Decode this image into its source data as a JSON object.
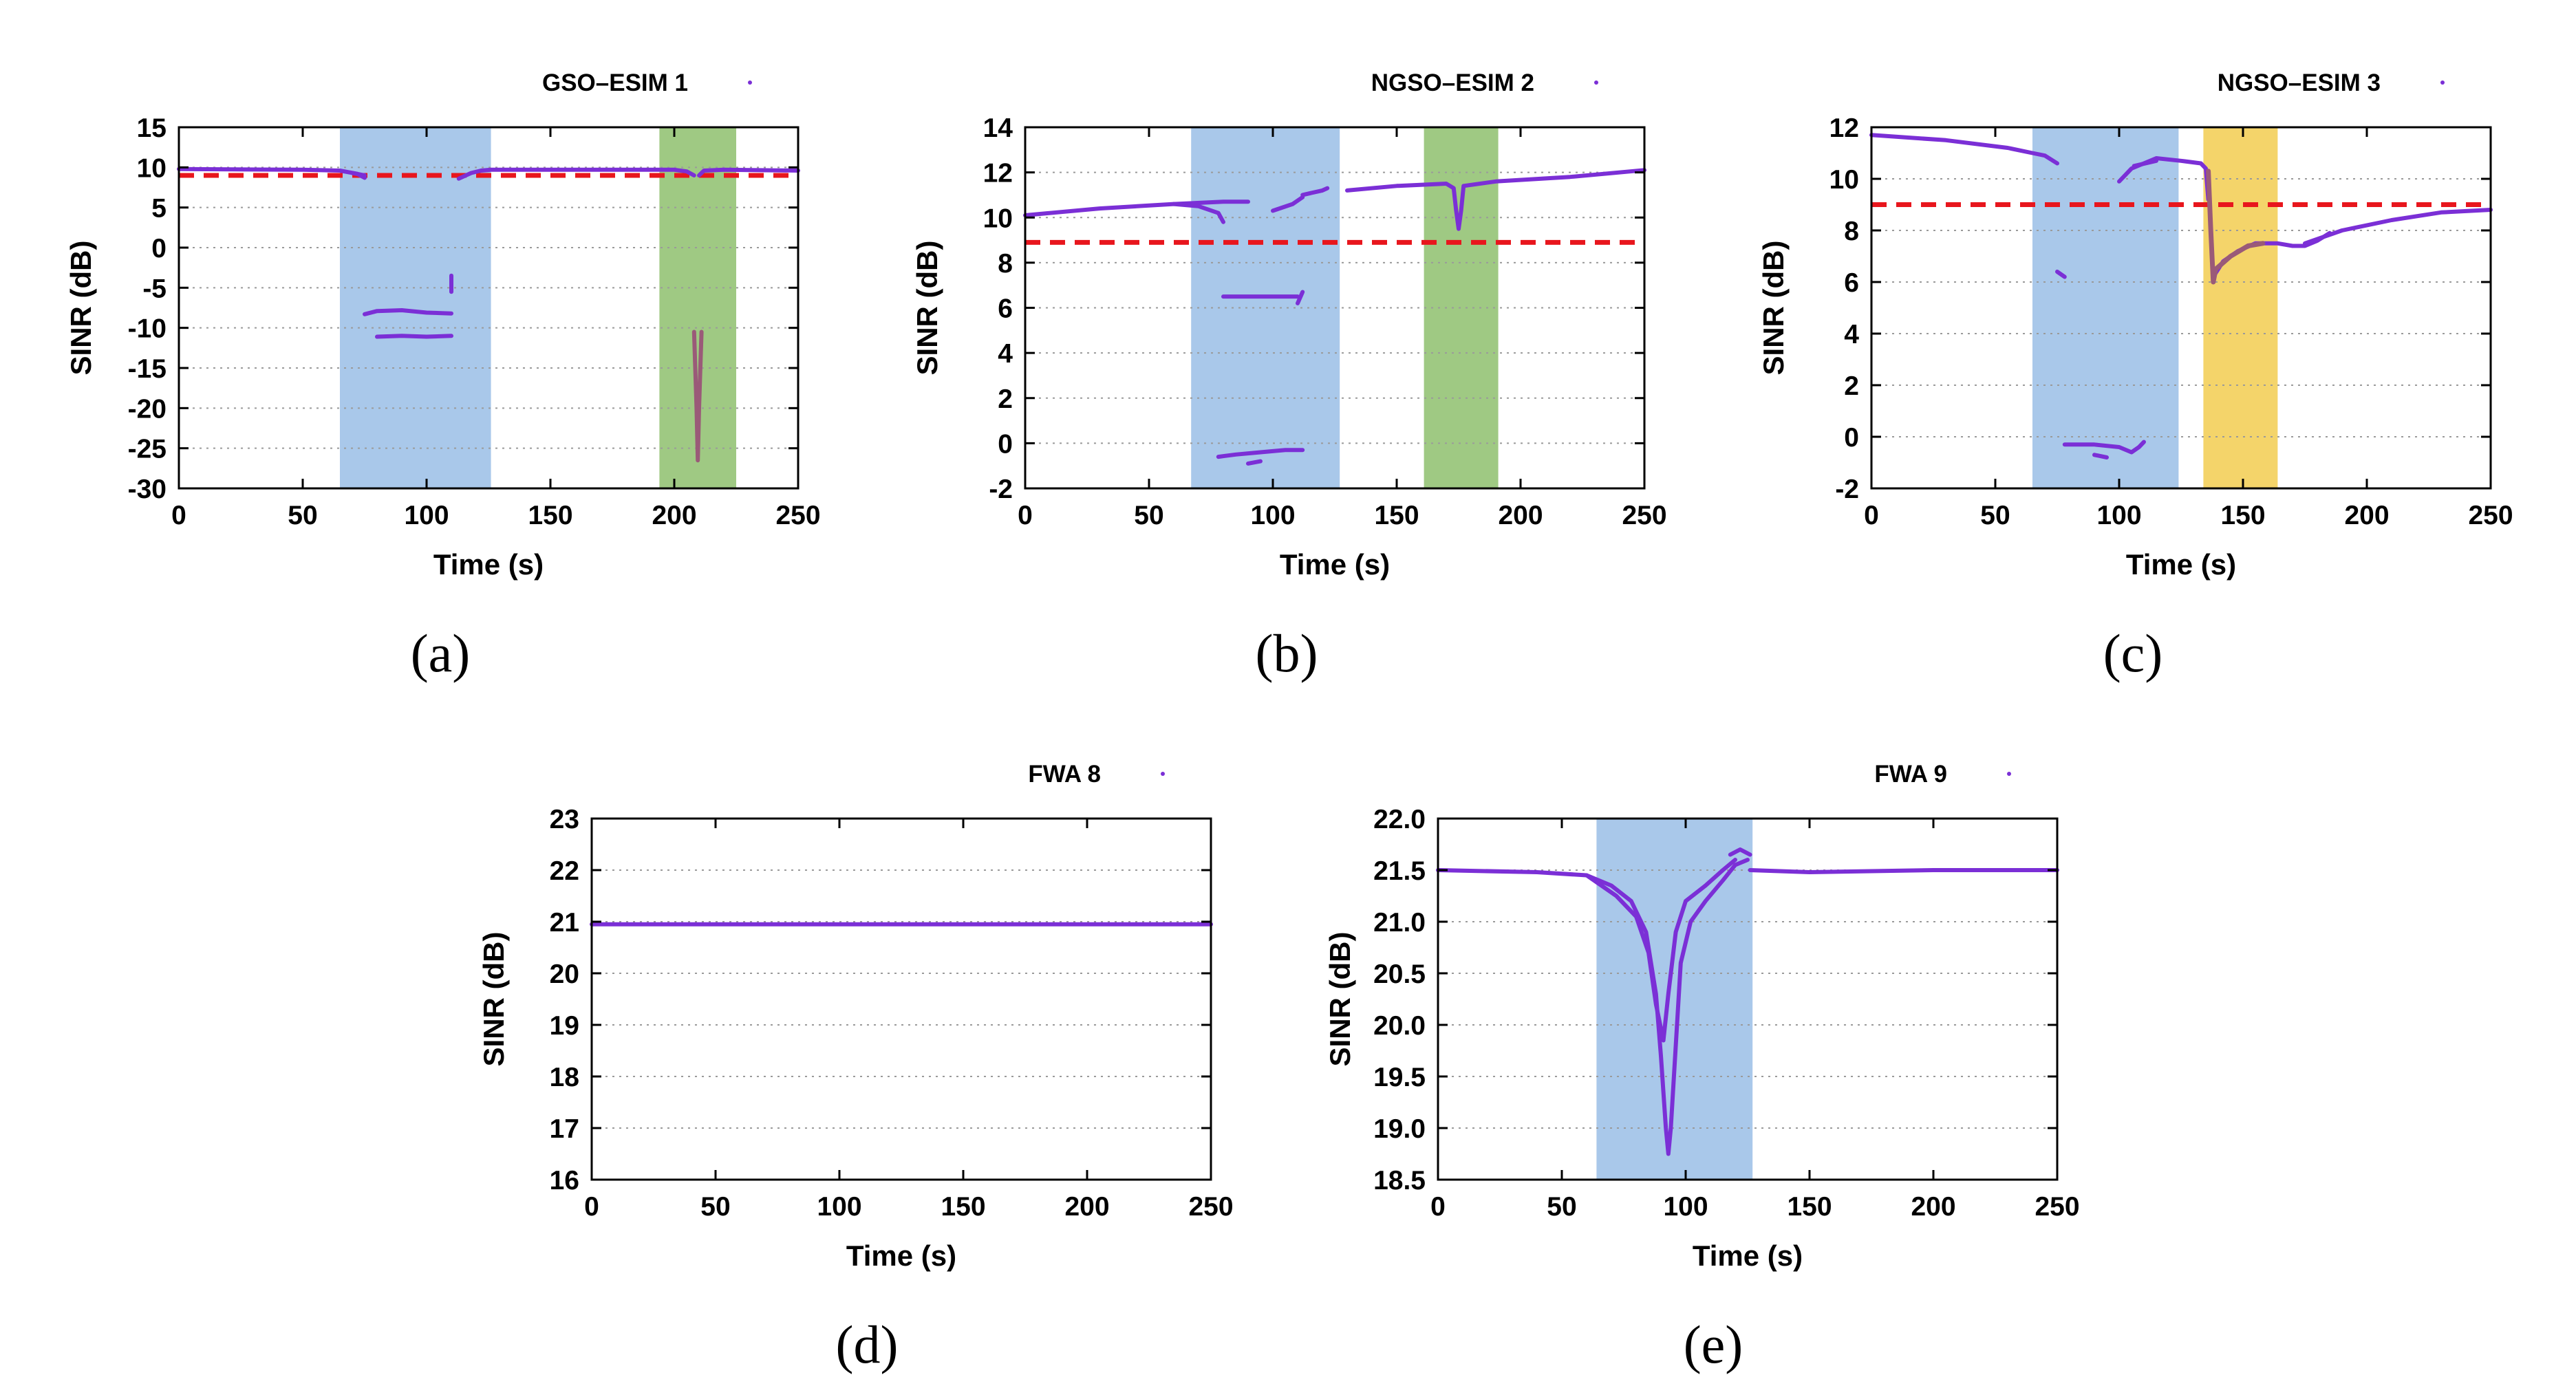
{
  "figure": {
    "captions": [
      "(a)",
      "(b)",
      "(c)",
      "(d)",
      "(e)"
    ]
  },
  "style": {
    "line_color": "#7b2fd6",
    "threshold_color": "#e8161d",
    "blue_region": "#a9c8ea",
    "green_region": "#9fc983",
    "yellow_region": "#f4d46a",
    "outlier_color": "#9a5a78"
  },
  "chart_data": [
    {
      "id": "a",
      "type": "line",
      "legend": "GSO–ESIM 1",
      "xlabel": "Time (s)",
      "ylabel": "SINR (dB)",
      "xlim": [
        0,
        250
      ],
      "ylim": [
        -30,
        15
      ],
      "xticks": [
        0,
        50,
        100,
        150,
        200,
        250
      ],
      "yticks": [
        -30,
        -25,
        -20,
        -15,
        -10,
        -5,
        0,
        5,
        10,
        15
      ],
      "ytick_labels": [
        "-30",
        "-25",
        "-20",
        "-15",
        "-10",
        "-5",
        "0",
        "5",
        "10",
        "15"
      ],
      "grid": true,
      "threshold": 9,
      "regions": [
        {
          "x0": 65,
          "x1": 126,
          "color": "blue"
        },
        {
          "x0": 194,
          "x1": 225,
          "color": "green"
        }
      ],
      "series": [
        {
          "name": "main",
          "points": [
            [
              0,
              9.8
            ],
            [
              50,
              9.7
            ],
            [
              65,
              9.6
            ],
            [
              72,
              9.2
            ],
            [
              75,
              8.7
            ]
          ]
        },
        {
          "name": "main-2",
          "points": [
            [
              113,
              8.6
            ],
            [
              118,
              9.3
            ],
            [
              122,
              9.6
            ],
            [
              126,
              9.7
            ],
            [
              200,
              9.7
            ],
            [
              205,
              9.5
            ],
            [
              208,
              9.0
            ]
          ]
        },
        {
          "name": "main-3",
          "points": [
            [
              210,
              9.0
            ],
            [
              212,
              9.6
            ],
            [
              220,
              9.7
            ],
            [
              250,
              9.6
            ]
          ]
        },
        {
          "name": "drop-1",
          "points": [
            [
              70,
              9.3
            ],
            [
              75,
              9.0
            ]
          ]
        },
        {
          "name": "low-1",
          "points": [
            [
              75,
              -8.3
            ],
            [
              80,
              -7.9
            ],
            [
              90,
              -7.8
            ],
            [
              100,
              -8.1
            ],
            [
              110,
              -8.2
            ]
          ]
        },
        {
          "name": "low-2",
          "points": [
            [
              80,
              -11.1
            ],
            [
              90,
              -11.0
            ],
            [
              100,
              -11.1
            ],
            [
              110,
              -11.0
            ]
          ]
        },
        {
          "name": "spike",
          "points": [
            [
              110,
              -3.5
            ],
            [
              110,
              -5.5
            ]
          ]
        },
        {
          "name": "deep-dip",
          "points": [
            [
              208,
              -10.5
            ],
            [
              209,
              -20
            ],
            [
              209.5,
              -26.5
            ],
            [
              210,
              -20
            ],
            [
              211,
              -10.5
            ]
          ]
        }
      ]
    },
    {
      "id": "b",
      "type": "line",
      "legend": "NGSO–ESIM 2",
      "xlabel": "Time (s)",
      "ylabel": "SINR (dB)",
      "xlim": [
        0,
        250
      ],
      "ylim": [
        -2,
        14
      ],
      "xticks": [
        0,
        50,
        100,
        150,
        200,
        250
      ],
      "yticks": [
        -2,
        0,
        2,
        4,
        6,
        8,
        10,
        12,
        14
      ],
      "ytick_labels": [
        "-2",
        "0",
        "2",
        "4",
        "6",
        "8",
        "10",
        "12",
        "14"
      ],
      "grid": true,
      "threshold": 8.9,
      "regions": [
        {
          "x0": 67,
          "x1": 127,
          "color": "blue"
        },
        {
          "x0": 161,
          "x1": 191,
          "color": "green"
        }
      ],
      "series": [
        {
          "name": "main",
          "points": [
            [
              0,
              10.1
            ],
            [
              30,
              10.4
            ],
            [
              60,
              10.6
            ],
            [
              80,
              10.7
            ],
            [
              90,
              10.7
            ]
          ]
        },
        {
          "name": "main-dip",
          "points": [
            [
              60,
              10.6
            ],
            [
              70,
              10.5
            ],
            [
              78,
              10.2
            ],
            [
              80,
              9.8
            ]
          ]
        },
        {
          "name": "rise-1",
          "points": [
            [
              100,
              10.3
            ],
            [
              108,
              10.6
            ],
            [
              112,
              10.9
            ]
          ]
        },
        {
          "name": "rise-2",
          "points": [
            [
              112,
              11.0
            ],
            [
              120,
              11.2
            ],
            [
              122,
              11.3
            ]
          ]
        },
        {
          "name": "main-2",
          "points": [
            [
              130,
              11.2
            ],
            [
              150,
              11.4
            ],
            [
              170,
              11.5
            ],
            [
              173,
              11.3
            ],
            [
              174,
              10.3
            ],
            [
              175,
              9.5
            ],
            [
              176,
              10.3
            ],
            [
              177,
              11.4
            ],
            [
              190,
              11.6
            ],
            [
              220,
              11.8
            ],
            [
              250,
              12.1
            ]
          ]
        },
        {
          "name": "mid",
          "points": [
            [
              80,
              6.5
            ],
            [
              90,
              6.5
            ],
            [
              100,
              6.5
            ],
            [
              110,
              6.5
            ]
          ]
        },
        {
          "name": "mid-2",
          "points": [
            [
              110,
              6.2
            ],
            [
              112,
              6.7
            ]
          ]
        },
        {
          "name": "low",
          "points": [
            [
              78,
              -0.6
            ],
            [
              85,
              -0.5
            ],
            [
              95,
              -0.4
            ],
            [
              105,
              -0.3
            ],
            [
              112,
              -0.3
            ]
          ]
        },
        {
          "name": "low-2",
          "points": [
            [
              90,
              -0.9
            ],
            [
              95,
              -0.8
            ]
          ]
        }
      ]
    },
    {
      "id": "c",
      "type": "line",
      "legend": "NGSO–ESIM 3",
      "xlabel": "Time (s)",
      "ylabel": "SINR (dB)",
      "xlim": [
        0,
        250
      ],
      "ylim": [
        -2,
        12
      ],
      "xticks": [
        0,
        50,
        100,
        150,
        200,
        250
      ],
      "yticks": [
        -2,
        0,
        2,
        4,
        6,
        8,
        10,
        12
      ],
      "ytick_labels": [
        "-2",
        "0",
        "2",
        "4",
        "6",
        "8",
        "10",
        "12"
      ],
      "grid": true,
      "threshold": 9,
      "regions": [
        {
          "x0": 65,
          "x1": 124,
          "color": "blue"
        },
        {
          "x0": 134,
          "x1": 164,
          "color": "yellow"
        }
      ],
      "series": [
        {
          "name": "main",
          "points": [
            [
              0,
              11.7
            ],
            [
              30,
              11.5
            ],
            [
              55,
              11.2
            ],
            [
              65,
              11.0
            ],
            [
              70,
              10.9
            ],
            [
              75,
              10.6
            ]
          ]
        },
        {
          "name": "rise",
          "points": [
            [
              100,
              9.9
            ],
            [
              105,
              10.4
            ],
            [
              110,
              10.6
            ],
            [
              115,
              10.8
            ],
            [
              125,
              10.7
            ],
            [
              133,
              10.6
            ],
            [
              135,
              10.4
            ],
            [
              136,
              9.2
            ]
          ]
        },
        {
          "name": "rise-b",
          "points": [
            [
              106,
              10.5
            ],
            [
              115,
              10.7
            ]
          ]
        },
        {
          "name": "recovery",
          "points": [
            [
              138,
              6.2
            ],
            [
              142,
              6.8
            ],
            [
              148,
              7.2
            ],
            [
              155,
              7.5
            ],
            [
              164,
              7.5
            ],
            [
              170,
              7.4
            ],
            [
              175,
              7.4
            ],
            [
              180,
              7.6
            ],
            [
              185,
              7.9
            ]
          ]
        },
        {
          "name": "recovery-2",
          "points": [
            [
              175,
              7.5
            ],
            [
              190,
              8.0
            ],
            [
              210,
              8.4
            ],
            [
              230,
              8.7
            ],
            [
              250,
              8.8
            ]
          ]
        },
        {
          "name": "mid",
          "points": [
            [
              75,
              6.4
            ],
            [
              78,
              6.2
            ]
          ]
        },
        {
          "name": "low",
          "points": [
            [
              78,
              -0.3
            ],
            [
              90,
              -0.3
            ],
            [
              100,
              -0.4
            ],
            [
              105,
              -0.6
            ],
            [
              108,
              -0.4
            ],
            [
              110,
              -0.2
            ]
          ]
        },
        {
          "name": "low-2",
          "points": [
            [
              90,
              -0.7
            ],
            [
              95,
              -0.8
            ]
          ]
        },
        {
          "name": "outlier-drop",
          "points": [
            [
              136,
              10.3
            ],
            [
              137,
              8.0
            ],
            [
              138,
              6.0
            ],
            [
              139,
              6.5
            ],
            [
              145,
              7.0
            ],
            [
              152,
              7.4
            ],
            [
              158,
              7.5
            ]
          ]
        }
      ]
    },
    {
      "id": "d",
      "type": "line",
      "legend": "FWA 8",
      "xlabel": "Time (s)",
      "ylabel": "SINR (dB)",
      "xlim": [
        0,
        250
      ],
      "ylim": [
        16,
        23
      ],
      "xticks": [
        0,
        50,
        100,
        150,
        200,
        250
      ],
      "yticks": [
        16,
        17,
        18,
        19,
        20,
        21,
        22,
        23
      ],
      "ytick_labels": [
        "16",
        "17",
        "18",
        "19",
        "20",
        "21",
        "22",
        "23"
      ],
      "grid": true,
      "regions": [],
      "series": [
        {
          "name": "main",
          "points": [
            [
              0,
              20.95
            ],
            [
              250,
              20.95
            ]
          ]
        }
      ]
    },
    {
      "id": "e",
      "type": "line",
      "legend": "FWA 9",
      "xlabel": "Time (s)",
      "ylabel": "SINR (dB)",
      "xlim": [
        0,
        250
      ],
      "ylim": [
        18.5,
        22.0
      ],
      "xticks": [
        0,
        50,
        100,
        150,
        200,
        250
      ],
      "yticks": [
        18.5,
        19.0,
        19.5,
        20.0,
        20.5,
        21.0,
        21.5,
        22.0
      ],
      "ytick_labels": [
        "18.5",
        "19.0",
        "19.5",
        "20.0",
        "20.5",
        "21.0",
        "21.5",
        "22.0"
      ],
      "grid": true,
      "regions": [
        {
          "x0": 64,
          "x1": 127,
          "color": "blue"
        }
      ],
      "series": [
        {
          "name": "main-left",
          "points": [
            [
              0,
              21.5
            ],
            [
              40,
              21.48
            ],
            [
              60,
              21.45
            ],
            [
              70,
              21.35
            ],
            [
              78,
              21.2
            ],
            [
              84,
              20.9
            ],
            [
              88,
              20.3
            ],
            [
              90,
              19.7
            ],
            [
              92,
              19.0
            ],
            [
              93,
              18.75
            ],
            [
              94,
              19.0
            ],
            [
              96,
              19.8
            ],
            [
              98,
              20.6
            ],
            [
              102,
              21.0
            ],
            [
              108,
              21.2
            ],
            [
              115,
              21.4
            ],
            [
              120,
              21.55
            ],
            [
              125,
              21.6
            ]
          ]
        },
        {
          "name": "inner",
          "points": [
            [
              60,
              21.45
            ],
            [
              72,
              21.25
            ],
            [
              80,
              21.05
            ],
            [
              85,
              20.7
            ],
            [
              88,
              20.2
            ],
            [
              91,
              19.85
            ],
            [
              93,
              20.3
            ],
            [
              96,
              20.9
            ],
            [
              100,
              21.2
            ],
            [
              108,
              21.35
            ],
            [
              115,
              21.5
            ],
            [
              120,
              21.6
            ]
          ]
        },
        {
          "name": "cluster",
          "points": [
            [
              118,
              21.65
            ],
            [
              122,
              21.7
            ],
            [
              126,
              21.65
            ]
          ]
        },
        {
          "name": "main-right",
          "points": [
            [
              126,
              21.5
            ],
            [
              150,
              21.48
            ],
            [
              200,
              21.5
            ],
            [
              250,
              21.5
            ]
          ]
        }
      ]
    }
  ]
}
